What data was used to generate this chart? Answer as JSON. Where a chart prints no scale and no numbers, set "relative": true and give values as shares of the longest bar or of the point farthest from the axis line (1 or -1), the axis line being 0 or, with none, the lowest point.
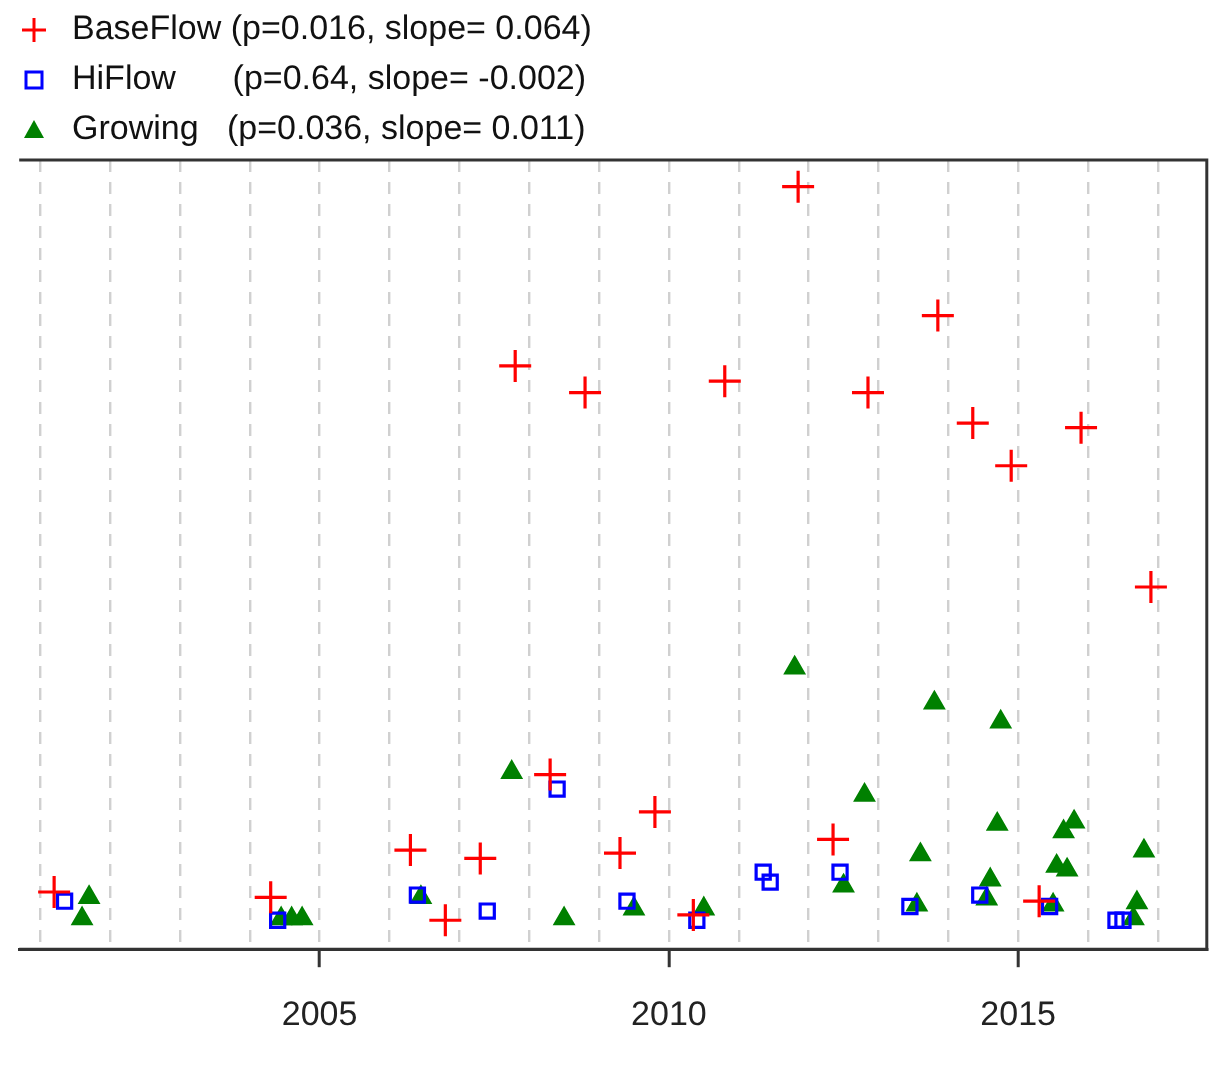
{
  "chart_data": {
    "type": "scatter",
    "relative": true,
    "xlim": [
      2000.7,
      2017.7
    ],
    "xticks": [
      {
        "value": 2001,
        "label": null
      },
      {
        "value": 2002,
        "label": null
      },
      {
        "value": 2003,
        "label": null
      },
      {
        "value": 2004,
        "label": null
      },
      2005,
      {
        "value": 2006,
        "label": null
      },
      {
        "value": 2007,
        "label": null
      },
      {
        "value": 2008,
        "label": null
      },
      {
        "value": 2009,
        "label": null
      },
      2010,
      {
        "value": 2011,
        "label": null
      },
      {
        "value": 2012,
        "label": null
      },
      {
        "value": 2013,
        "label": null
      },
      {
        "value": 2014,
        "label": null
      },
      2015,
      {
        "value": 2016,
        "label": null
      },
      {
        "value": 2017,
        "label": null
      }
    ],
    "grid": "x",
    "legend": "top left",
    "series": [
      {
        "name": "BaseFlow (p=0.016, slope= 0.064)",
        "color": "#ff0000",
        "marker": "cross",
        "x": [
          2001.2,
          2004.3,
          2006.3,
          2006.8,
          2007.3,
          2007.8,
          2008.3,
          2008.8,
          2009.3,
          2009.8,
          2010.35,
          2010.8,
          2011.85,
          2012.35,
          2012.85,
          2013.85,
          2014.35,
          2014.9,
          2015.3,
          2015.9,
          2016.9
        ],
        "values": [
          0.075,
          0.068,
          0.13,
          0.038,
          0.119,
          0.765,
          0.229,
          0.73,
          0.126,
          0.18,
          0.045,
          0.745,
          1.0,
          0.144,
          0.73,
          0.831,
          0.69,
          0.634,
          0.063,
          0.684,
          0.475
        ]
      },
      {
        "name": "HiFlow      (p=0.64, slope= -0.002)",
        "color": "#0000ff",
        "marker": "square",
        "x": [
          2001.35,
          2004.4,
          2006.4,
          2007.4,
          2008.4,
          2009.4,
          2010.4,
          2011.35,
          2011.45,
          2012.45,
          2013.45,
          2014.45,
          2015.45,
          2016.4,
          2016.5
        ],
        "values": [
          0.063,
          0.038,
          0.071,
          0.05,
          0.21,
          0.063,
          0.038,
          0.101,
          0.088,
          0.101,
          0.056,
          0.071,
          0.056,
          0.038,
          0.038
        ]
      },
      {
        "name": "Growing   (p=0.036, slope= 0.011)",
        "color": "#008000",
        "marker": "triangle",
        "x": [
          2001.6,
          2001.7,
          2004.45,
          2004.6,
          2004.75,
          2006.45,
          2007.75,
          2008.5,
          2009.5,
          2010.5,
          2011.8,
          2012.5,
          2012.8,
          2013.55,
          2013.6,
          2013.8,
          2014.55,
          2014.6,
          2014.7,
          2014.75,
          2015.5,
          2015.55,
          2015.65,
          2015.7,
          2015.8,
          2016.65,
          2016.7,
          2016.8
        ],
        "values": [
          0.04,
          0.068,
          0.04,
          0.04,
          0.04,
          0.068,
          0.232,
          0.04,
          0.053,
          0.053,
          0.369,
          0.083,
          0.202,
          0.058,
          0.124,
          0.323,
          0.066,
          0.091,
          0.164,
          0.298,
          0.058,
          0.109,
          0.154,
          0.104,
          0.167,
          0.04,
          0.061,
          0.129
        ]
      }
    ]
  }
}
